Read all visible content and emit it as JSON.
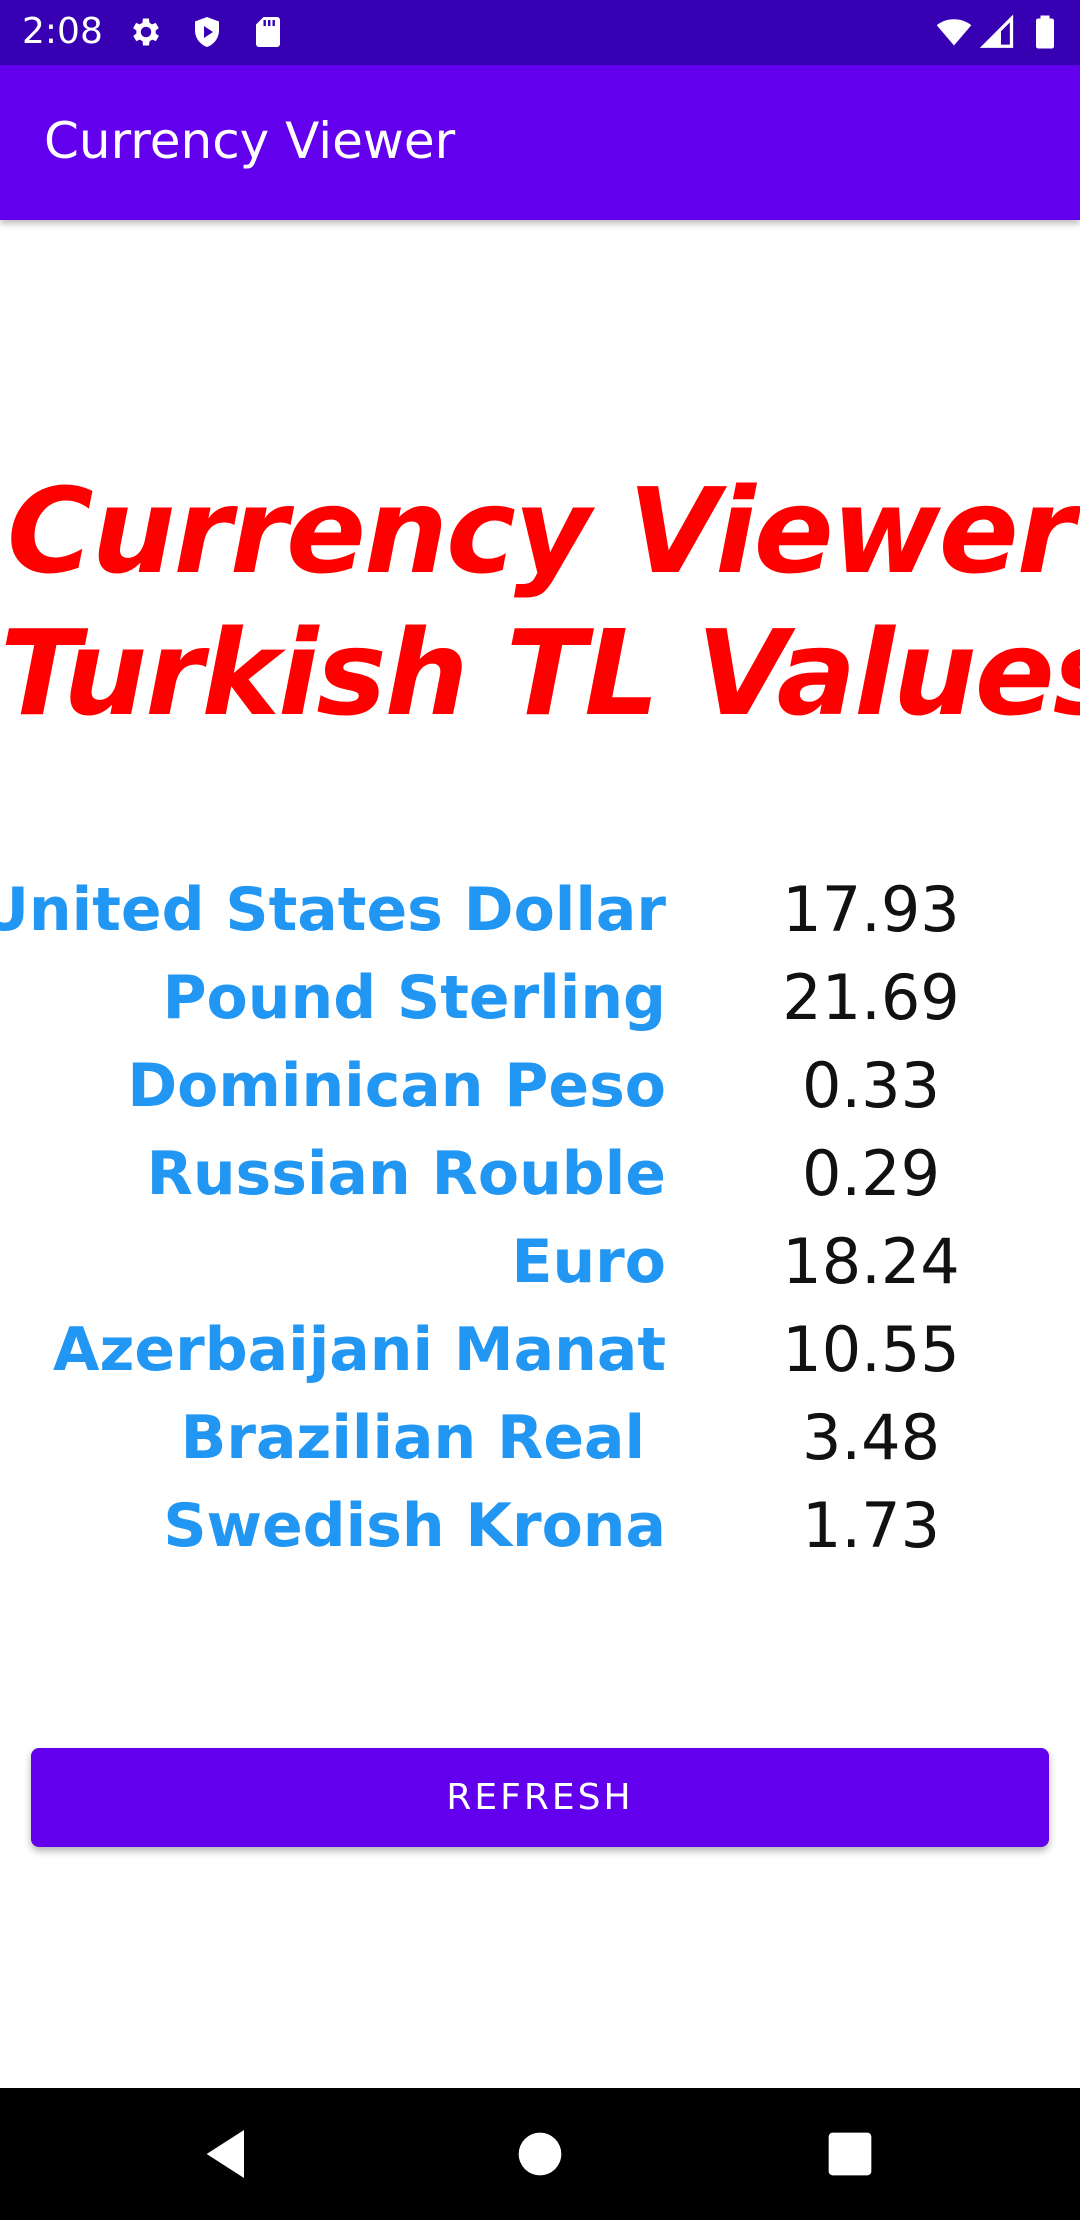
{
  "status_bar": {
    "time": "2:08",
    "icons_left": [
      "gear-icon",
      "shield-play-icon",
      "sd-card-icon"
    ],
    "icons_right": [
      "wifi-icon",
      "signal-icon",
      "battery-icon"
    ]
  },
  "app_bar": {
    "title": "Currency Viewer"
  },
  "heading": {
    "line1": "Currency Viewer",
    "line2": "Turkish TL Values"
  },
  "rates": [
    {
      "name": "United States Dollar",
      "value": "17.93"
    },
    {
      "name": "Pound Sterling",
      "value": "21.69"
    },
    {
      "name": "Dominican Peso",
      "value": "0.33"
    },
    {
      "name": "Russian Rouble",
      "value": "0.29"
    },
    {
      "name": "Euro",
      "value": "18.24"
    },
    {
      "name": "Azerbaijani Manat",
      "value": "10.55"
    },
    {
      "name": "Brazilian Real ",
      "value": "3.48"
    },
    {
      "name": "Swedish Krona",
      "value": "1.73"
    }
  ],
  "refresh_button": {
    "label": "REFRESH"
  },
  "nav_bar": {
    "buttons": [
      "back-icon",
      "home-icon",
      "recents-icon"
    ]
  },
  "colors": {
    "status_bar": "#3700B3",
    "app_bar": "#6200EE",
    "heading": "#FF0000",
    "currency_name": "#2196F3",
    "button": "#6200EE"
  }
}
